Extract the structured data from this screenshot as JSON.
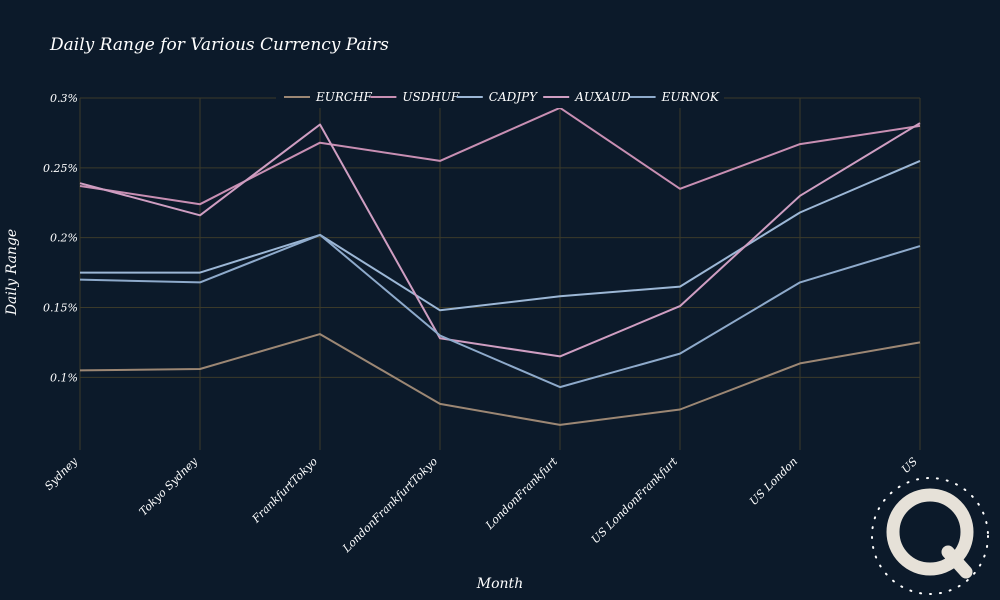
{
  "chart_data": {
    "type": "line",
    "title": "Daily Range for Various Currency Pairs",
    "xlabel": "Month",
    "ylabel": "Daily Range",
    "categories": [
      "Sydney",
      "Tokyo Sydney",
      "FrankfurtTokyo",
      "LondonFrankfurtTokyo",
      "LondonFrankfurt",
      "US LondonFrankfurt",
      "US London",
      "US"
    ],
    "y_ticks": [
      {
        "value": 0.1,
        "label": "0.1%"
      },
      {
        "value": 0.15,
        "label": "0.15%"
      },
      {
        "value": 0.2,
        "label": "0.2%"
      },
      {
        "value": 0.25,
        "label": "0.25%"
      },
      {
        "value": 0.3,
        "label": "0.3%"
      }
    ],
    "ylim": [
      0.048,
      0.3
    ],
    "grid": true,
    "legend_position": "top",
    "series": [
      {
        "name": "EURCHF",
        "color": "#9c8774",
        "values": [
          0.105,
          0.106,
          0.131,
          0.081,
          0.066,
          0.077,
          0.11,
          0.125
        ]
      },
      {
        "name": "USDHUF",
        "color": "#c88fb3",
        "values": [
          0.237,
          0.224,
          0.268,
          0.255,
          0.293,
          0.235,
          0.267,
          0.28
        ]
      },
      {
        "name": "CADJPY",
        "color": "#9cb7d6",
        "values": [
          0.175,
          0.175,
          0.202,
          0.148,
          0.158,
          0.165,
          0.218,
          0.255
        ]
      },
      {
        "name": "AUXAUD",
        "color": "#cf9ec2",
        "values": [
          0.239,
          0.216,
          0.281,
          0.128,
          0.115,
          0.151,
          0.23,
          0.282
        ]
      },
      {
        "name": "EURNOK",
        "color": "#8eaacb",
        "values": [
          0.17,
          0.168,
          0.202,
          0.13,
          0.093,
          0.117,
          0.168,
          0.194
        ]
      }
    ]
  }
}
